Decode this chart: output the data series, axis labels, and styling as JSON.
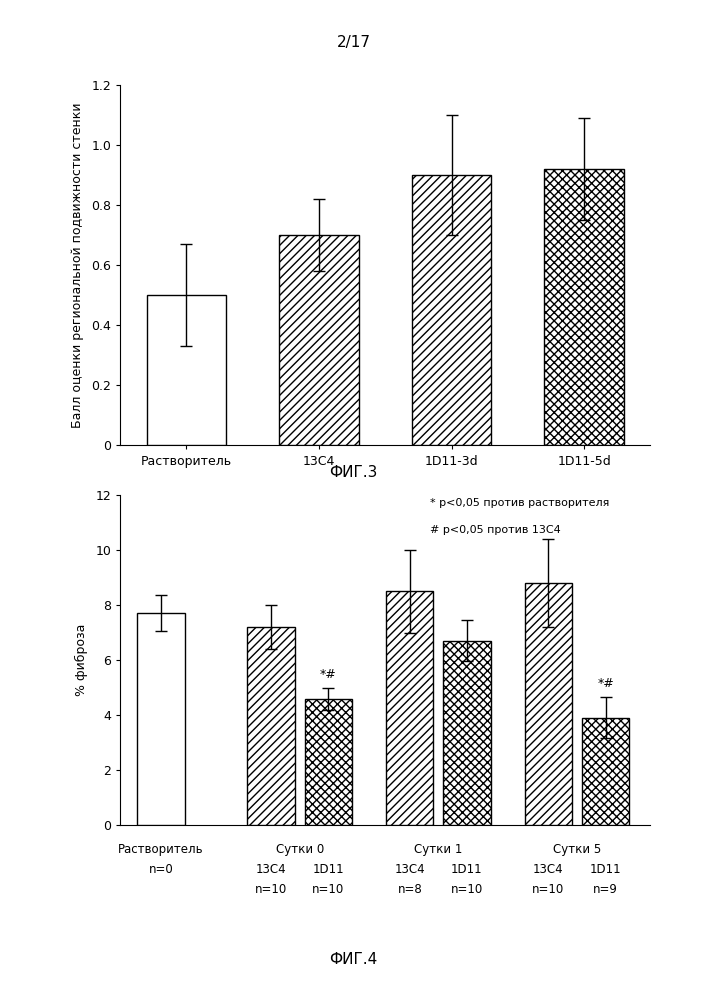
{
  "page_label": "2/17",
  "fig3": {
    "title": "ФИГ.3",
    "ylabel": "Балл оценки региональной подвижности стенки",
    "ylim": [
      0,
      1.2
    ],
    "yticks": [
      0,
      0.2,
      0.4,
      0.6,
      0.8,
      1.0,
      1.2
    ],
    "ytick_labels": [
      "0",
      "0.2",
      "0.4",
      "0.6",
      "0.8",
      "1.0",
      "1.2"
    ],
    "categories": [
      "Растворитель",
      "13С4",
      "1D11-3d",
      "1D11-5d"
    ],
    "values": [
      0.5,
      0.7,
      0.9,
      0.92
    ],
    "errors": [
      0.17,
      0.12,
      0.2,
      0.17
    ],
    "hatches": [
      "",
      "////",
      "////",
      "...."
    ],
    "hatch_densities": [
      0,
      4,
      4,
      4
    ]
  },
  "fig4": {
    "title": "ФИГ.4",
    "ylabel": "% фиброза",
    "ylim": [
      0,
      12
    ],
    "yticks": [
      0,
      2,
      4,
      6,
      8,
      10,
      12
    ],
    "legend_line1": "* p<0,05 против растворителя",
    "legend_line2": "# p<0,05 против 13С4",
    "bar_values": [
      7.7,
      7.2,
      4.6,
      8.5,
      6.7,
      8.8,
      3.9
    ],
    "bar_errors": [
      0.65,
      0.8,
      0.4,
      1.5,
      0.75,
      1.6,
      0.75
    ],
    "bar_hatches": [
      "",
      "////",
      "....",
      "////",
      "....",
      "////",
      "...."
    ],
    "annotations": [
      "",
      "",
      "*#",
      "",
      "",
      "",
      "*#"
    ],
    "group_label1": [
      "Растворитель",
      "Сутки 0",
      "Сутки 1",
      "Сутки 5"
    ],
    "sub_label_13c4": [
      "",
      "13С4",
      "13С4",
      "13С4"
    ],
    "sub_label_1d11": [
      "",
      "1D11",
      "1D11",
      "1D11"
    ],
    "sub_n_13c4": [
      "n=0",
      "n=10",
      "n=8",
      "n=10"
    ],
    "sub_n_1d11": [
      "",
      "n=10",
      "n=10",
      "n=9"
    ]
  }
}
